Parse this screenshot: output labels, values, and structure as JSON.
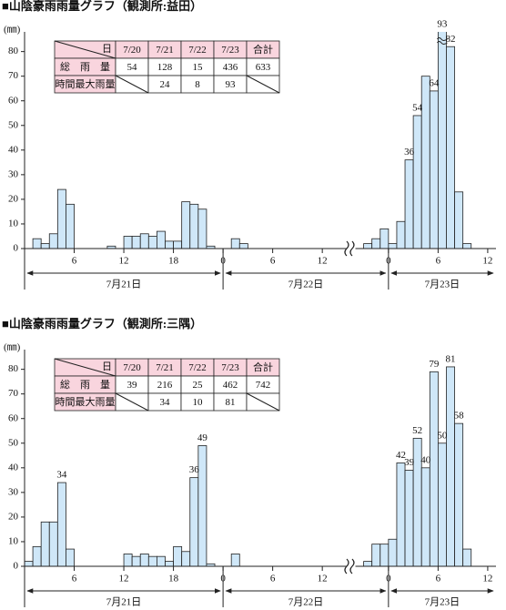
{
  "chart_data": [
    {
      "type": "bar",
      "title": "■山陰豪雨雨量グラフ（観測所:益田）",
      "ylabel": "(㎜)",
      "color": "#cfe7f8",
      "x": [
        1,
        2,
        3,
        4,
        5,
        10,
        12,
        13,
        14,
        15,
        16,
        17,
        18,
        19,
        20,
        21,
        22,
        25,
        26,
        45,
        46,
        47,
        48,
        49,
        50,
        51,
        52,
        53,
        54,
        55,
        56,
        57
      ],
      "values": [
        4,
        2,
        6,
        24,
        18,
        1,
        5,
        5,
        6,
        5,
        7,
        3,
        3,
        19,
        18,
        16,
        1,
        4,
        2,
        2,
        4,
        8,
        2,
        11,
        36,
        54,
        70,
        64,
        93,
        82,
        23,
        2
      ],
      "value_labels": [
        null,
        null,
        null,
        null,
        null,
        null,
        null,
        null,
        null,
        null,
        null,
        null,
        null,
        null,
        null,
        null,
        null,
        null,
        null,
        null,
        null,
        null,
        null,
        null,
        "36",
        "54",
        null,
        "64",
        "93",
        "82",
        null,
        null
      ],
      "ylim": [
        0,
        88
      ],
      "yticks": [
        0,
        10,
        20,
        30,
        40,
        50,
        60,
        70,
        80
      ],
      "xlim": [
        0,
        61
      ],
      "xbreak": [
        39,
        44
      ],
      "xticks": [
        {
          "value": 6,
          "label": "6"
        },
        {
          "value": 12,
          "label": "12"
        },
        {
          "value": 18,
          "label": "18"
        },
        {
          "value": 24,
          "label": "0"
        },
        {
          "value": 30,
          "label": "6"
        },
        {
          "value": 36,
          "label": "12"
        },
        {
          "value": 48,
          "label": "0"
        },
        {
          "value": 54,
          "label": "6"
        },
        {
          "value": 60,
          "label": "12"
        }
      ],
      "days": [
        {
          "label": "7月21日",
          "range": [
            0,
            24
          ]
        },
        {
          "label": "7月22日",
          "range": [
            24,
            48
          ]
        },
        {
          "label": "7月23日",
          "range": [
            48,
            61
          ]
        }
      ],
      "table": {
        "header": [
          "日",
          "7/20",
          "7/21",
          "7/22",
          "7/23",
          "合計"
        ],
        "rows": [
          [
            "総　雨　量",
            "54",
            "128",
            "15",
            "436",
            "633"
          ],
          [
            "時間最大雨量",
            null,
            "24",
            "8",
            "93",
            null
          ]
        ]
      }
    },
    {
      "type": "bar",
      "title": "■山陰豪雨雨量グラフ（観測所:三隅）",
      "ylabel": "(㎜)",
      "color": "#cfe7f8",
      "x": [
        0,
        1,
        2,
        3,
        4,
        5,
        12,
        13,
        14,
        15,
        16,
        17,
        18,
        19,
        20,
        21,
        22,
        25,
        45,
        46,
        47,
        48,
        49,
        50,
        51,
        52,
        53,
        54,
        55,
        56,
        57
      ],
      "values": [
        2,
        8,
        18,
        18,
        34,
        7,
        5,
        4,
        5,
        4,
        4,
        2,
        8,
        6,
        36,
        49,
        1,
        5,
        2,
        9,
        9,
        11,
        42,
        39,
        52,
        40,
        79,
        50,
        81,
        58,
        7
      ],
      "value_labels": [
        null,
        null,
        null,
        null,
        "34",
        null,
        null,
        null,
        null,
        null,
        null,
        null,
        null,
        null,
        "36",
        "49",
        null,
        null,
        null,
        null,
        null,
        null,
        "42",
        "39",
        "52",
        "40",
        "79",
        "50",
        "81",
        "58",
        null
      ],
      "ylim": [
        0,
        88
      ],
      "yticks": [
        0,
        10,
        20,
        30,
        40,
        50,
        60,
        70,
        80
      ],
      "xlim": [
        0,
        61
      ],
      "xbreak": [
        39,
        44
      ],
      "xticks": [
        {
          "value": 6,
          "label": "6"
        },
        {
          "value": 12,
          "label": "12"
        },
        {
          "value": 18,
          "label": "18"
        },
        {
          "value": 24,
          "label": "0"
        },
        {
          "value": 30,
          "label": "6"
        },
        {
          "value": 36,
          "label": "12"
        },
        {
          "value": 48,
          "label": "0"
        },
        {
          "value": 54,
          "label": "6"
        },
        {
          "value": 60,
          "label": "12"
        }
      ],
      "days": [
        {
          "label": "7月21日",
          "range": [
            0,
            24
          ]
        },
        {
          "label": "7月22日",
          "range": [
            24,
            48
          ]
        },
        {
          "label": "7月23日",
          "range": [
            48,
            61
          ]
        }
      ],
      "table": {
        "header": [
          "日",
          "7/20",
          "7/21",
          "7/22",
          "7/23",
          "合計"
        ],
        "rows": [
          [
            "総　雨　量",
            "39",
            "216",
            "25",
            "462",
            "742"
          ],
          [
            "時間最大雨量",
            null,
            "34",
            "10",
            "81",
            null
          ]
        ]
      }
    }
  ]
}
